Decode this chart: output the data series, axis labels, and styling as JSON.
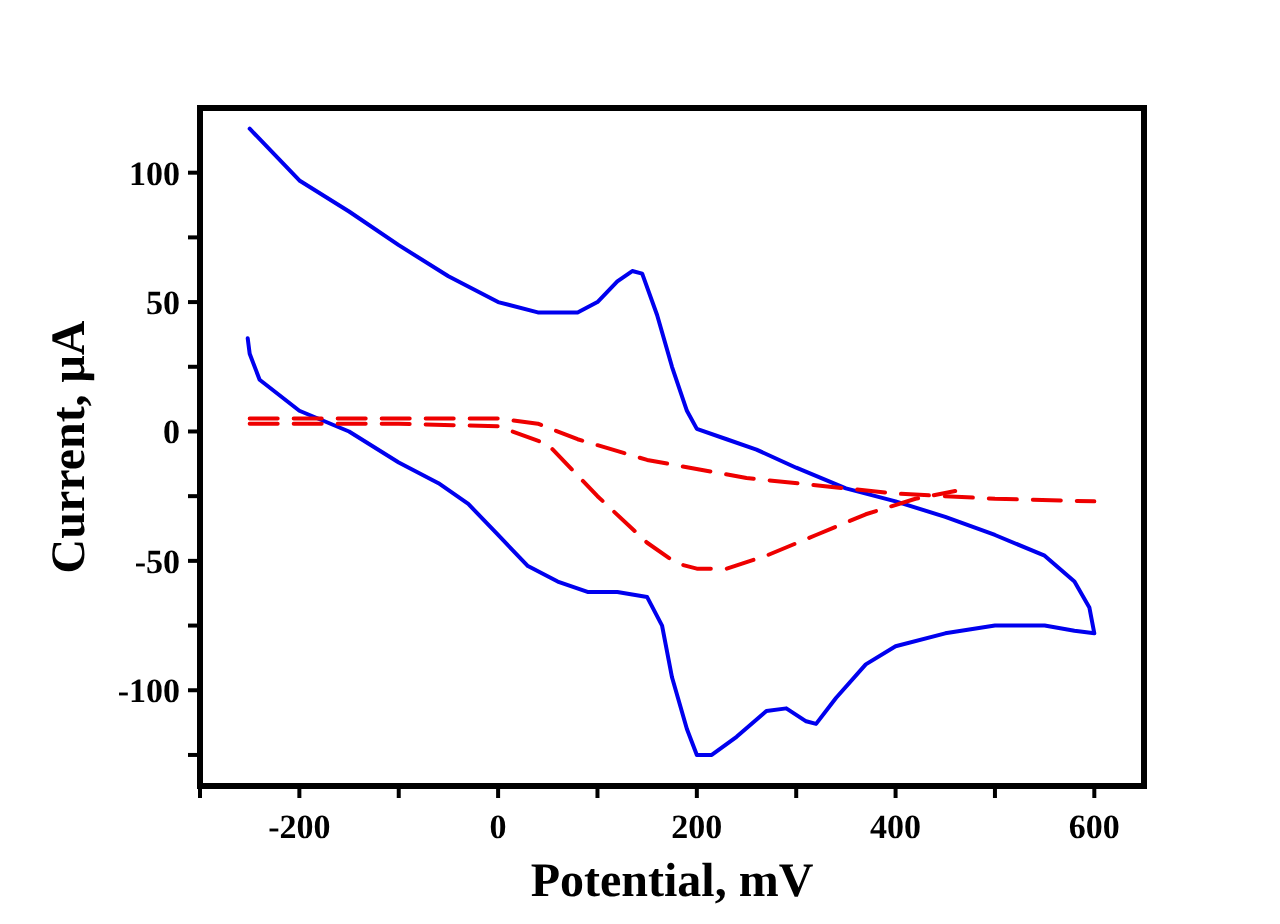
{
  "chart_data": {
    "type": "line",
    "xlabel": "Potential, mV",
    "ylabel": "Current, μA",
    "xlim": [
      -300,
      650
    ],
    "ylim": [
      -137,
      125
    ],
    "xticks": [
      {
        "value": -300,
        "label": null
      },
      -200,
      {
        "value": -100,
        "label": null
      },
      0,
      {
        "value": 100,
        "label": null
      },
      200,
      {
        "value": 300,
        "label": null
      },
      400,
      {
        "value": 500,
        "label": null
      },
      600
    ],
    "yticks": [
      {
        "value": -125,
        "label": null
      },
      -100,
      {
        "value": -75,
        "label": null
      },
      -50,
      {
        "value": -25,
        "label": null
      },
      0,
      {
        "value": 25,
        "label": null
      },
      50,
      {
        "value": 75,
        "label": null
      },
      100
    ],
    "grid": false,
    "marker": "none",
    "series": [
      {
        "color": "#0000ee",
        "line_style": "solid",
        "x": [
          -250,
          -200,
          -150,
          -100,
          -50,
          0,
          40,
          80,
          100,
          120,
          135,
          145,
          160,
          175,
          190,
          200,
          230,
          260,
          300,
          350,
          400,
          450,
          500,
          550,
          580,
          595,
          600,
          580,
          550,
          500,
          450,
          400,
          370,
          340,
          320,
          310,
          290,
          270,
          240,
          215,
          200,
          190,
          175,
          165,
          150,
          120,
          90,
          60,
          30,
          0,
          -30,
          -60,
          -100,
          -150,
          -200,
          -240,
          -250,
          -252
        ],
        "values": [
          117,
          97,
          85,
          72,
          60,
          50,
          46,
          46,
          50,
          58,
          62,
          61,
          45,
          25,
          8,
          1,
          -3,
          -7,
          -14,
          -22,
          -27,
          -33,
          -40,
          -48,
          -58,
          -68,
          -78,
          -77,
          -75,
          -75,
          -78,
          -83,
          -90,
          -103,
          -113,
          -112,
          -107,
          -108,
          -118,
          -125,
          -125,
          -115,
          -95,
          -75,
          -64,
          -62,
          -62,
          -58,
          -52,
          -40,
          -28,
          -20,
          -12,
          0,
          8,
          20,
          30,
          36
        ]
      },
      {
        "color": "#ee0000",
        "line_style": "dashed",
        "x": [
          -250,
          -100,
          0,
          40,
          80,
          150,
          250,
          350,
          400,
          500,
          600
        ],
        "values": [
          5,
          5,
          5,
          3,
          -3,
          -11,
          -18,
          -22,
          -24,
          -26,
          -27
        ]
      },
      {
        "color": "#ee0000",
        "line_style": "dashed",
        "x": [
          -250,
          -100,
          0,
          50,
          100,
          150,
          180,
          200,
          230,
          270,
          320,
          370,
          420,
          460
        ],
        "values": [
          3,
          3,
          2,
          -5,
          -25,
          -43,
          -51,
          -53,
          -53,
          -48,
          -40,
          -32,
          -26,
          -23
        ]
      }
    ]
  }
}
